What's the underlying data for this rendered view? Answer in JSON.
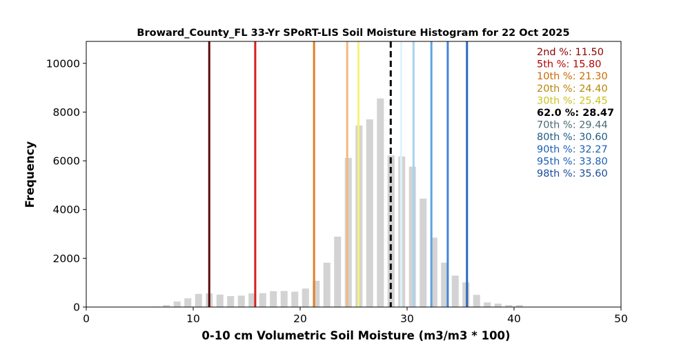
{
  "chart_data": {
    "type": "bar",
    "title": "Broward_County_FL 33-Yr SPoRT-LIS Soil Moisture Histogram for 22 Oct 2025",
    "xlabel": "0-10 cm Volumetric Soil Moisture (m3/m3 * 100)",
    "ylabel": "Frequency",
    "xlim": [
      0,
      50
    ],
    "ylim": [
      0,
      10900
    ],
    "xticks": [
      0,
      10,
      20,
      30,
      40,
      50
    ],
    "yticks": [
      0,
      2000,
      4000,
      6000,
      8000,
      10000
    ],
    "bar_color": "#d3d3d3",
    "bar_width": 0.65,
    "bins": [
      {
        "x": 6.5,
        "count": 20
      },
      {
        "x": 7.5,
        "count": 80
      },
      {
        "x": 8.5,
        "count": 230
      },
      {
        "x": 9.5,
        "count": 360
      },
      {
        "x": 10.5,
        "count": 540
      },
      {
        "x": 11.5,
        "count": 560
      },
      {
        "x": 12.5,
        "count": 510
      },
      {
        "x": 13.5,
        "count": 450
      },
      {
        "x": 14.5,
        "count": 470
      },
      {
        "x": 15.5,
        "count": 560
      },
      {
        "x": 16.5,
        "count": 570
      },
      {
        "x": 17.5,
        "count": 650
      },
      {
        "x": 18.5,
        "count": 660
      },
      {
        "x": 19.5,
        "count": 630
      },
      {
        "x": 20.5,
        "count": 760
      },
      {
        "x": 21.5,
        "count": 1080
      },
      {
        "x": 22.5,
        "count": 1820
      },
      {
        "x": 23.5,
        "count": 2890
      },
      {
        "x": 24.5,
        "count": 6120
      },
      {
        "x": 25.5,
        "count": 7450
      },
      {
        "x": 26.5,
        "count": 7700
      },
      {
        "x": 27.5,
        "count": 8560
      },
      {
        "x": 28.5,
        "count": 6220
      },
      {
        "x": 29.5,
        "count": 6180
      },
      {
        "x": 30.5,
        "count": 5760
      },
      {
        "x": 31.5,
        "count": 4450
      },
      {
        "x": 32.5,
        "count": 2850
      },
      {
        "x": 33.5,
        "count": 1820
      },
      {
        "x": 34.5,
        "count": 1290
      },
      {
        "x": 35.5,
        "count": 1010
      },
      {
        "x": 36.5,
        "count": 500
      },
      {
        "x": 37.5,
        "count": 190
      },
      {
        "x": 38.5,
        "count": 140
      },
      {
        "x": 39.5,
        "count": 80
      },
      {
        "x": 40.5,
        "count": 80
      }
    ],
    "percentiles": [
      {
        "label": "2nd %: 11.50",
        "value": 11.5,
        "color": "#5c0a0a",
        "dashed": false
      },
      {
        "label": "5th %: 15.80",
        "value": 15.8,
        "color": "#d42020",
        "dashed": false
      },
      {
        "label": "10th %: 21.30",
        "value": 21.3,
        "color": "#e67e22",
        "dashed": false
      },
      {
        "label": "20th %: 24.40",
        "value": 24.4,
        "color": "#f5b77a",
        "dashed": false
      },
      {
        "label": "30th %: 25.45",
        "value": 25.45,
        "color": "#f7f27a",
        "dashed": false
      },
      {
        "label": "62.0 %: 28.47",
        "value": 28.47,
        "color": "#000000",
        "dashed": true
      },
      {
        "label": "70th %: 29.44",
        "value": 29.44,
        "color": "#dff3fb",
        "dashed": false
      },
      {
        "label": "80th %: 30.60",
        "value": 30.6,
        "color": "#a6d3ee",
        "dashed": false
      },
      {
        "label": "90th %: 32.27",
        "value": 32.27,
        "color": "#5fa2de",
        "dashed": false
      },
      {
        "label": "95th %: 33.80",
        "value": 33.8,
        "color": "#3f86d8",
        "dashed": false
      },
      {
        "label": "98th %: 35.60",
        "value": 35.6,
        "color": "#2a67b8",
        "dashed": false
      }
    ],
    "percentile_text_colors": [
      "#8b0000",
      "#b30000",
      "#c96a00",
      "#b8860b",
      "#c9c220",
      "#000000",
      "#4a6a72",
      "#1f5a85",
      "#1a5fb4",
      "#1a5fb4",
      "#1a4a9a"
    ],
    "grid": false,
    "legend_placement": "top-right"
  }
}
